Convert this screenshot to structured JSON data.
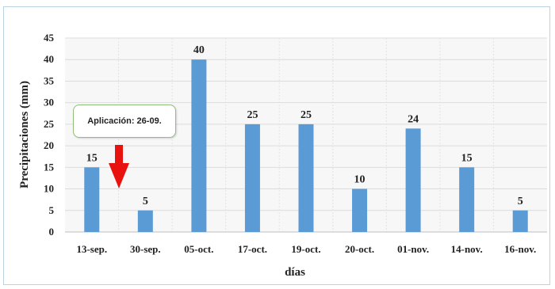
{
  "chart_data": {
    "type": "bar",
    "categories": [
      "13-sep.",
      "30-sep.",
      "05-oct.",
      "17-oct.",
      "19-oct.",
      "20-oct.",
      "01-nov.",
      "14-nov.",
      "16-nov."
    ],
    "values": [
      15,
      5,
      40,
      25,
      25,
      10,
      24,
      15,
      5
    ],
    "xlabel": "días",
    "ylabel": "Precipitaciones (mm)",
    "ylim": [
      0,
      45
    ],
    "yticks": [
      0,
      5,
      10,
      15,
      20,
      25,
      30,
      35,
      40,
      45
    ],
    "grid": true,
    "bar_color": "#5b9bd5",
    "annotation": {
      "text": "Aplicación: 26-09.",
      "arrow_color": "#e8130f",
      "arrow_direction": "down"
    }
  }
}
